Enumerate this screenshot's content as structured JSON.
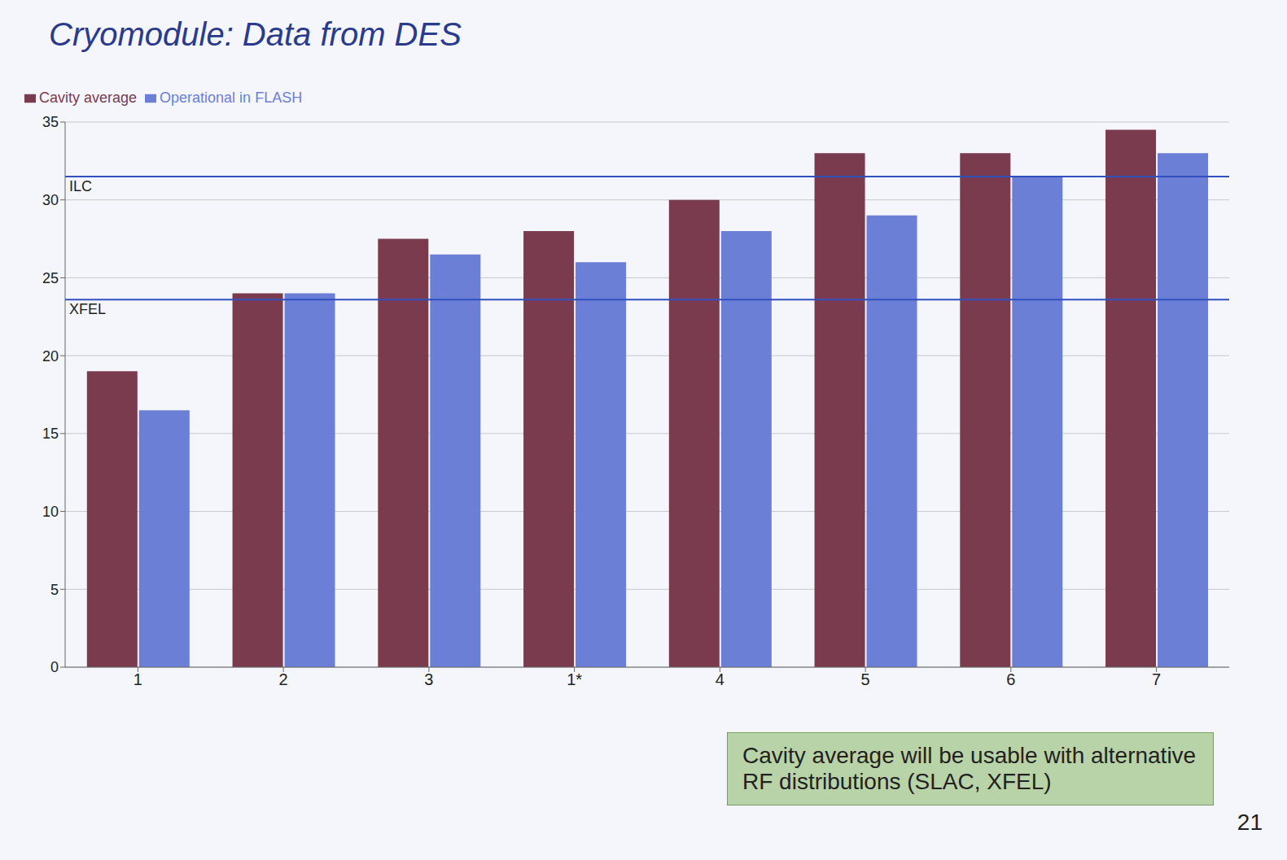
{
  "chart_data": {
    "type": "bar",
    "title": "Cryomodule: Data from DES",
    "categories": [
      "1",
      "2",
      "3",
      "1*",
      "4",
      "5",
      "6",
      "7"
    ],
    "series": [
      {
        "name": "Cavity average",
        "color": "#7a3b4e",
        "values": [
          19,
          24,
          27.5,
          28,
          30,
          33,
          33,
          34.5
        ]
      },
      {
        "name": "Operational in FLASH",
        "color": "#6b7fd6",
        "values": [
          16.5,
          24,
          26.5,
          26,
          28,
          29,
          31.5,
          33
        ]
      }
    ],
    "ylim": [
      0,
      35
    ],
    "yticks": [
      0,
      5,
      10,
      15,
      20,
      25,
      30,
      35
    ],
    "grid": true,
    "legend": "top-left",
    "reference_lines": [
      {
        "label": "ILC",
        "value": 31.5
      },
      {
        "label": "XFEL",
        "value": 23.6
      }
    ],
    "annotations": [
      "Cavity average will be usable with alternative RF distributions (SLAC, XFEL)",
      "21"
    ]
  }
}
